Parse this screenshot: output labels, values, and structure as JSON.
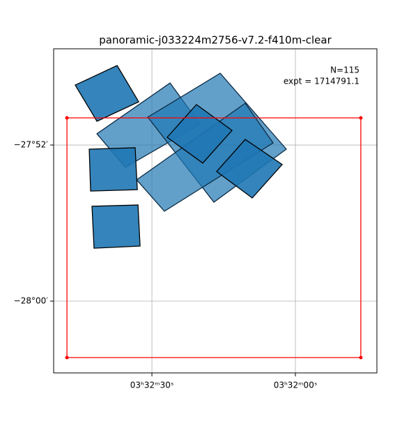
{
  "chart_data": {
    "type": "footprint",
    "title": "panoramic-j033224m2756-v7.2-f410m-clear",
    "annotations": [
      "N=115",
      "expt = 1714791.1"
    ],
    "xlim": [
      53.2106,
      52.929
    ],
    "ylim": [
      -28.0613,
      -27.7845
    ],
    "xticks": [
      {
        "value": 53.125,
        "label": "03ʰ32ᵐ30ˢ"
      },
      {
        "value": 53.0,
        "label": "03ʰ32ᵐ00ˢ"
      }
    ],
    "yticks": [
      {
        "value": -27.86667,
        "label": "−27°52′"
      },
      {
        "value": -28.0,
        "label": "−28°00′"
      }
    ],
    "grid": true,
    "series": [
      {
        "color": "#1f77b4",
        "edgecolor": "#0d2b44",
        "opacity": 0.7,
        "polygons": [
          {
            "x": [
              53.1729,
              53.1092,
              53.0831,
              53.1481
            ],
            "y": [
              -27.8571,
              -27.8137,
              -27.8488,
              -27.8857
            ]
          },
          {
            "x": [
              53.1286,
              53.0655,
              53.0079,
              53.071
            ],
            "y": [
              -27.8429,
              -27.8054,
              -27.8702,
              -27.9155
            ]
          },
          {
            "x": [
              53.1383,
              53.0437,
              53.0194,
              53.1141
            ],
            "y": [
              -27.8964,
              -27.831,
              -27.8649,
              -27.9232
            ]
          }
        ]
      },
      {
        "color": "#1f77b4",
        "edgecolor": "#000000",
        "opacity": 0.9,
        "polygons": [
          {
            "x": [
              53.1918,
              53.1553,
              53.1365,
              53.1729
            ],
            "y": [
              -27.8155,
              -27.7988,
              -27.8298,
              -27.8464
            ]
          },
          {
            "x": [
              53.1796,
              53.1396,
              53.1377,
              53.1784
            ],
            "y": [
              -27.8702,
              -27.869,
              -27.9048,
              -27.906
            ]
          },
          {
            "x": [
              53.1772,
              53.1371,
              53.1353,
              53.1754
            ],
            "y": [
              -27.919,
              -27.9179,
              -27.953,
              -27.9548
            ]
          },
          {
            "x": [
              53.1117,
              53.0862,
              53.0552,
              53.0807
            ],
            "y": [
              -27.8601,
              -27.8321,
              -27.8542,
              -27.8821
            ]
          },
          {
            "x": [
              53.0686,
              53.0437,
              53.0115,
              53.0376
            ],
            "y": [
              -27.8893,
              -27.8619,
              -27.8833,
              -27.9119
            ]
          }
        ]
      },
      {
        "color": "none",
        "edgecolor": "#ff0000",
        "opacity": 1,
        "markers": true,
        "polygons": [
          {
            "x": [
              53.199,
              52.943,
              52.943,
              53.199
            ],
            "y": [
              -27.8435,
              -27.8435,
              -28.0482,
              -28.0482
            ]
          }
        ]
      }
    ]
  }
}
